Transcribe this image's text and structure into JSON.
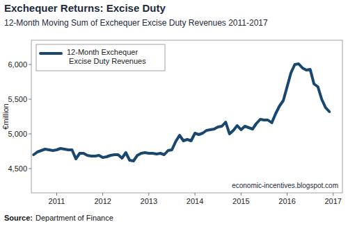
{
  "chart_data": {
    "type": "line",
    "title": "Exchequer Returns: Excise Duty",
    "subtitle": "12-Month Moving Sum of Exchequer Excise Duty Revenues 2011-2017",
    "ylabel": "€million",
    "note": "economic-incentives.blogspot.com",
    "source_label": "Source:",
    "source": "Department of Finance",
    "x": [
      2010.5,
      2010.583,
      2010.667,
      2010.75,
      2010.833,
      2010.917,
      2011,
      2011.083,
      2011.167,
      2011.25,
      2011.333,
      2011.417,
      2011.5,
      2011.583,
      2011.667,
      2011.75,
      2011.833,
      2011.917,
      2012,
      2012.083,
      2012.167,
      2012.25,
      2012.333,
      2012.417,
      2012.5,
      2012.583,
      2012.667,
      2012.75,
      2012.833,
      2012.917,
      2013,
      2013.083,
      2013.167,
      2013.25,
      2013.333,
      2013.417,
      2013.5,
      2013.583,
      2013.667,
      2013.75,
      2013.833,
      2013.917,
      2014,
      2014.083,
      2014.167,
      2014.25,
      2014.333,
      2014.417,
      2014.5,
      2014.583,
      2014.667,
      2014.75,
      2014.833,
      2014.917,
      2015,
      2015.083,
      2015.167,
      2015.25,
      2015.333,
      2015.417,
      2015.5,
      2015.583,
      2015.667,
      2015.75,
      2015.833,
      2015.917,
      2016,
      2016.083,
      2016.167,
      2016.25,
      2016.333,
      2016.417,
      2016.5,
      2016.583,
      2016.667,
      2016.75,
      2016.833,
      2016.917
    ],
    "series": [
      {
        "name": "12-Month Exchequer Excise Duty Revenues",
        "color": "#1a476f",
        "values": [
          4700,
          4740,
          4760,
          4780,
          4770,
          4760,
          4770,
          4790,
          4780,
          4770,
          4770,
          4640,
          4720,
          4720,
          4690,
          4680,
          4680,
          4690,
          4660,
          4670,
          4690,
          4700,
          4700,
          4650,
          4730,
          4620,
          4610,
          4690,
          4720,
          4730,
          4720,
          4720,
          4710,
          4720,
          4700,
          4760,
          4770,
          4890,
          4980,
          4900,
          4920,
          4900,
          5010,
          4990,
          5010,
          5050,
          5060,
          5070,
          5100,
          5110,
          5170,
          5000,
          5050,
          5120,
          5060,
          5110,
          5090,
          5070,
          5150,
          5210,
          5200,
          5200,
          5160,
          5290,
          5400,
          5480,
          5680,
          5880,
          6000,
          6010,
          5950,
          5920,
          5930,
          5720,
          5680,
          5500,
          5380,
          5320
        ]
      }
    ],
    "xlim": [
      2010.45,
      2017.2
    ],
    "xticks": [
      2011,
      2012,
      2013,
      2014,
      2015,
      2016,
      2017
    ],
    "ylim": [
      4150,
      6350
    ],
    "yticks": [
      {
        "value": 4500,
        "label": "4,500"
      },
      {
        "value": 5000,
        "label": "5,000"
      },
      {
        "value": 5500,
        "label": "5,500"
      },
      {
        "value": 6000,
        "label": "6,000"
      }
    ],
    "grid": false,
    "legend": "top-left"
  }
}
